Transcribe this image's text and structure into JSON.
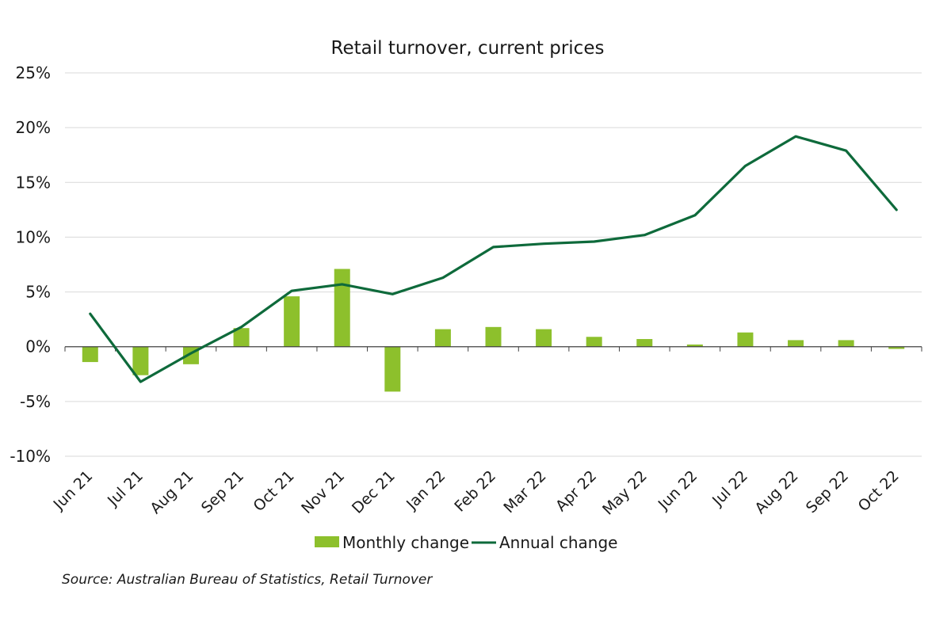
{
  "source_note": "Source: Australian Bureau of Statistics, Retail Turnover",
  "colors": {
    "monthly_bar": "#8dc02c",
    "annual_line": "#0e6a3b",
    "gridline": "#d9d9d9",
    "axis": "#404040"
  },
  "chart_data": {
    "type": "bar",
    "title": "Retail turnover, current prices",
    "xlabel": "",
    "ylabel": "",
    "ylim": [
      -10,
      25
    ],
    "yticks": [
      -10,
      -5,
      0,
      5,
      10,
      15,
      20,
      25
    ],
    "ytick_labels": [
      "-10%",
      "-5%",
      "0%",
      "5%",
      "10%",
      "15%",
      "20%",
      "25%"
    ],
    "grid": true,
    "legend_position": "bottom",
    "categories": [
      "Jun 21",
      "Jul 21",
      "Aug 21",
      "Sep 21",
      "Oct 21",
      "Nov 21",
      "Dec 21",
      "Jan 22",
      "Feb 22",
      "Mar 22",
      "Apr 22",
      "May 22",
      "Jun 22",
      "Jul 22",
      "Aug 22",
      "Sep 22",
      "Oct 22"
    ],
    "series": [
      {
        "name": "Monthly change",
        "type": "bar",
        "values": [
          -1.4,
          -2.6,
          -1.6,
          1.7,
          4.6,
          7.1,
          -4.1,
          1.6,
          1.8,
          1.6,
          0.9,
          0.7,
          0.2,
          1.3,
          0.6,
          0.6,
          -0.2
        ]
      },
      {
        "name": "Annual change",
        "type": "line",
        "values": [
          3.0,
          -3.2,
          -0.6,
          1.8,
          5.1,
          5.7,
          4.8,
          6.3,
          9.1,
          9.4,
          9.6,
          10.2,
          12.0,
          16.5,
          19.2,
          17.9,
          12.5
        ]
      }
    ]
  }
}
